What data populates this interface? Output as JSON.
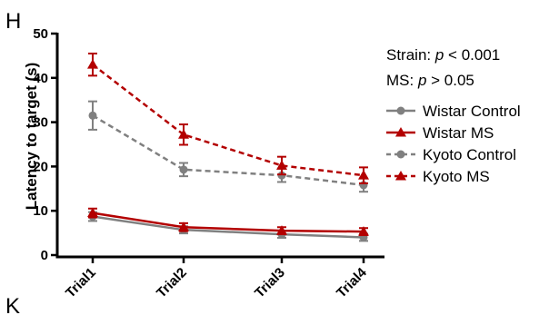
{
  "panel_labels": {
    "top": "H",
    "bottom": "K"
  },
  "stats": [
    {
      "prefix": "Strain: ",
      "p": "p",
      "rest": " < 0.001"
    },
    {
      "prefix": "MS: ",
      "p": "p",
      "rest": " > 0.05"
    }
  ],
  "colors": {
    "gray": "#808080",
    "red": "#b30000",
    "axis": "#000000"
  },
  "chart_data": {
    "type": "line",
    "title": "",
    "xlabel": "",
    "ylabel": "Latency to target (s)",
    "categories": [
      "Trial1",
      "Trial2",
      "Trial3",
      "Trial4"
    ],
    "ylim": [
      0,
      50
    ],
    "yticks": [
      0,
      10,
      20,
      30,
      40,
      50
    ],
    "grid": false,
    "legend_position": "right",
    "series": [
      {
        "name": "Wistar Control",
        "color": "#808080",
        "marker": "circle",
        "dashed": false,
        "values": [
          8.7,
          5.7,
          4.7,
          4.0
        ],
        "errors": [
          1.0,
          0.8,
          0.8,
          0.8
        ]
      },
      {
        "name": "Wistar MS",
        "color": "#b30000",
        "marker": "triangle",
        "dashed": false,
        "values": [
          9.5,
          6.3,
          5.5,
          5.3
        ],
        "errors": [
          1.0,
          0.9,
          0.8,
          0.8
        ]
      },
      {
        "name": "Kyoto Control",
        "color": "#808080",
        "marker": "circle",
        "dashed": true,
        "values": [
          31.5,
          19.3,
          18.0,
          15.8
        ],
        "errors": [
          3.2,
          1.5,
          1.5,
          1.5
        ]
      },
      {
        "name": "Kyoto MS",
        "color": "#b30000",
        "marker": "triangle",
        "dashed": true,
        "values": [
          43.0,
          27.2,
          20.2,
          18.0
        ],
        "errors": [
          2.5,
          2.3,
          2.0,
          1.8
        ]
      }
    ]
  }
}
